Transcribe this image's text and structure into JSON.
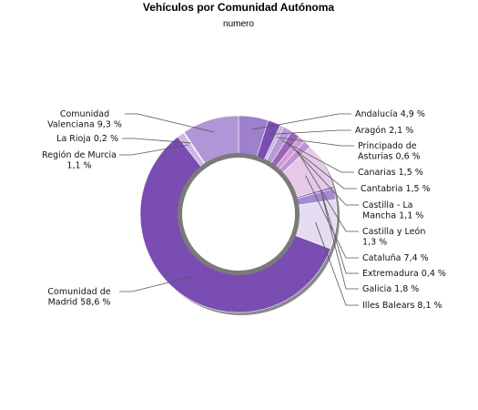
{
  "chart_data": {
    "type": "pie",
    "style": "donut",
    "title": "Vehículos por Comunidad Autónoma",
    "subtitle": "numero",
    "slices": [
      {
        "label": "Andalucía 4,9 %",
        "value": 4.9,
        "color": "#9e80cc"
      },
      {
        "label": "Aragón 2,1 %",
        "value": 2.1,
        "color": "#7a4db3"
      },
      {
        "label": "Principado de Asturias 0,6 %",
        "value": 0.6,
        "color": "#c8b4e2"
      },
      {
        "label": "Canarias 1,5 %",
        "value": 1.5,
        "color": "#b79bd8"
      },
      {
        "label": "Cantabria 1,5 %",
        "value": 1.5,
        "color": "#9a64b8"
      },
      {
        "label": "Castilla - La Mancha 1,1 %",
        "value": 1.1,
        "color": "#cf9bd6"
      },
      {
        "label": "Castilla y León 1,3 %",
        "value": 1.3,
        "color": "#bf95d0"
      },
      {
        "label": "Cataluña 7,4 %",
        "value": 7.4,
        "color": "#e6c8e8"
      },
      {
        "label": "Extremadura 0,4 %",
        "value": 0.4,
        "color": "#8a70c4"
      },
      {
        "label": "Galicia 1,8 %",
        "value": 1.8,
        "color": "#a788d2"
      },
      {
        "label": "Illes Balears 8,1 %",
        "value": 8.1,
        "color": "#e4dcf0"
      },
      {
        "label": "Comunidad de Madrid 58,6 %",
        "value": 58.6,
        "color": "#7a4db3"
      },
      {
        "label": "Región de Murcia 1,1 %",
        "value": 1.1,
        "color": "#c8b8e4"
      },
      {
        "label": "La Rioja 0,2 %",
        "value": 0.2,
        "color": "#ddd4ee"
      },
      {
        "label": "Comunidad Valenciana 9,3 %",
        "value": 9.3,
        "color": "#b096d6"
      }
    ],
    "legend": "none"
  }
}
